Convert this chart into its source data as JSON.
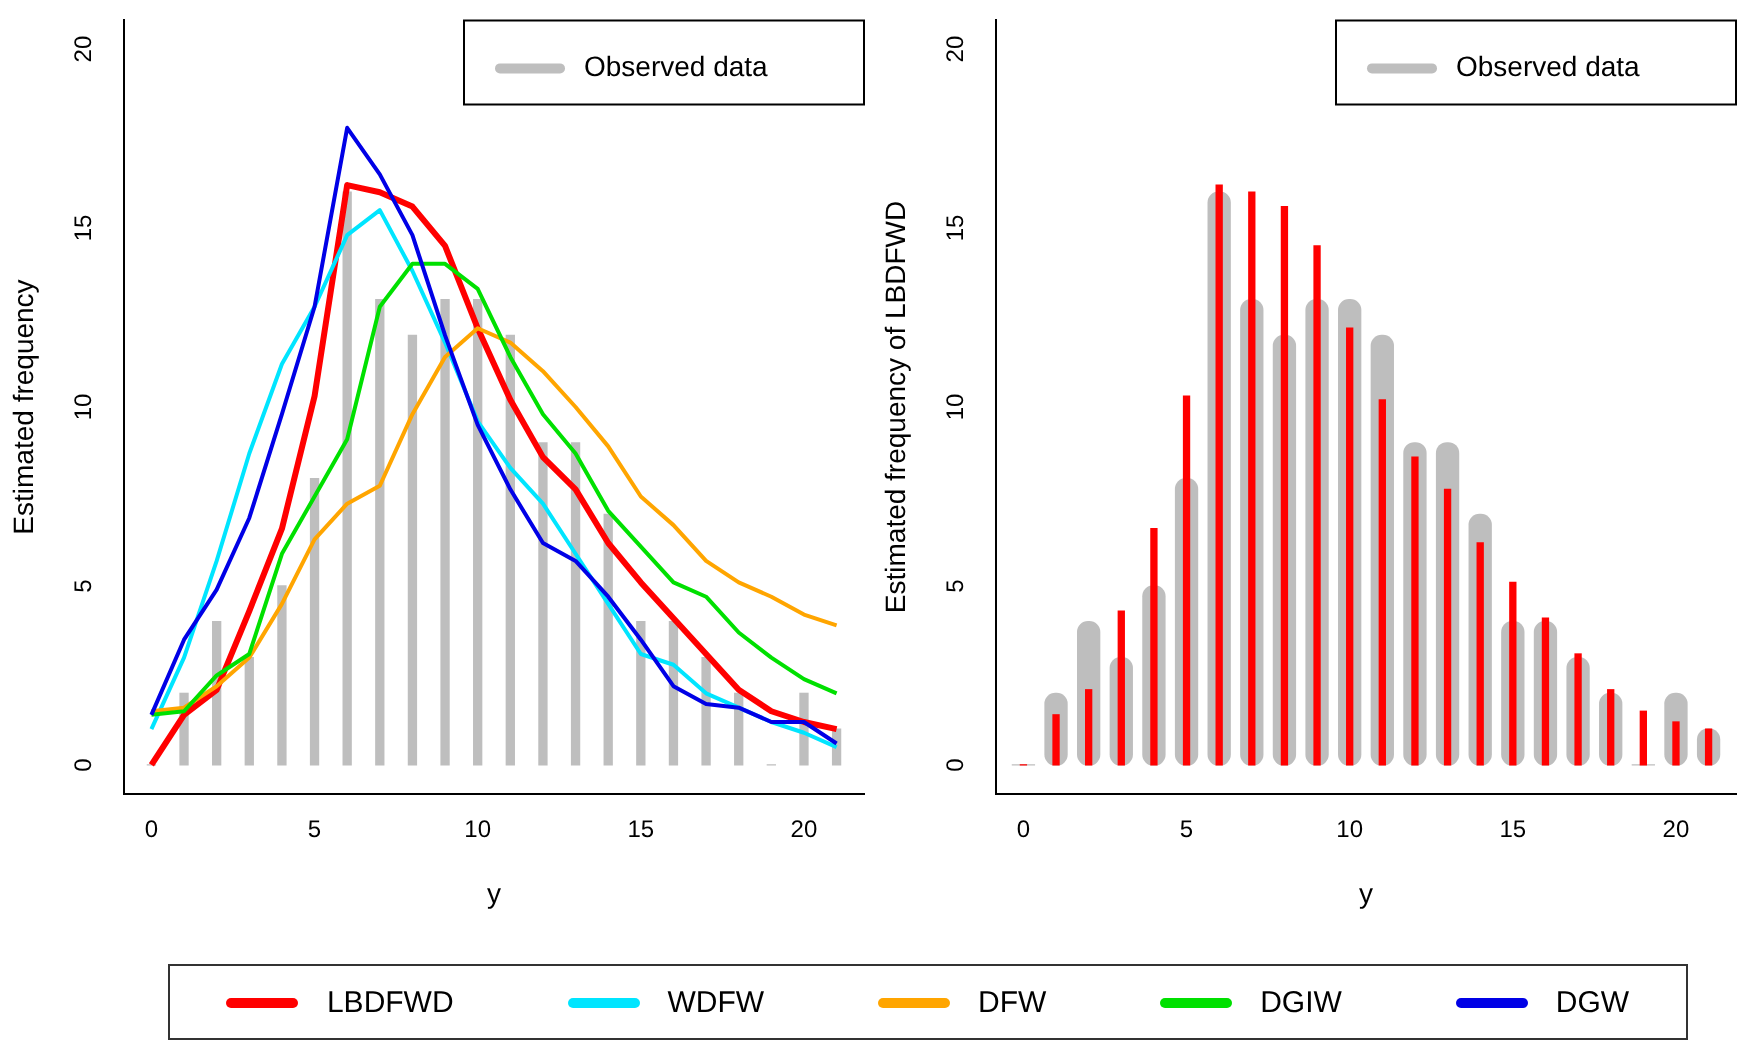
{
  "chart_data": [
    {
      "type": "line",
      "xlabel": "y",
      "ylabel": "Estimated frequency",
      "x": [
        0,
        1,
        2,
        3,
        4,
        5,
        6,
        7,
        8,
        9,
        10,
        11,
        12,
        13,
        14,
        15,
        16,
        17,
        18,
        19,
        20,
        21
      ],
      "xlim": [
        -0.84,
        21.84
      ],
      "ylim": [
        -0.8,
        20.8
      ],
      "xticks": [
        0,
        5,
        10,
        15,
        20
      ],
      "yticks": [
        0,
        5,
        10,
        15,
        20
      ],
      "grid": false,
      "legend": "bottom",
      "series": [
        {
          "name": "Observed data",
          "type": "bar",
          "color": "#bebebe",
          "values": [
            0,
            2,
            4,
            3,
            5,
            8,
            16,
            13,
            12,
            13,
            13,
            12,
            9,
            9,
            7,
            4,
            4,
            3,
            2,
            0,
            2,
            1
          ]
        },
        {
          "name": "LBDFWD",
          "color": "#ff0000",
          "values": [
            0,
            1.4,
            2.1,
            4.3,
            6.6,
            10.3,
            16.2,
            16.0,
            15.6,
            14.5,
            12.2,
            10.2,
            8.6,
            7.7,
            6.2,
            5.1,
            4.1,
            3.1,
            2.1,
            1.5,
            1.2,
            1.0
          ]
        },
        {
          "name": "WDFW",
          "color": "#00e5ff",
          "values": [
            1.0,
            3.0,
            5.7,
            8.7,
            11.2,
            12.8,
            14.8,
            15.5,
            13.8,
            11.8,
            9.6,
            8.3,
            7.3,
            5.9,
            4.5,
            3.1,
            2.8,
            2.0,
            1.6,
            1.2,
            0.9,
            0.5
          ]
        },
        {
          "name": "DFW",
          "color": "#ffa500",
          "values": [
            1.5,
            1.6,
            2.2,
            3.0,
            4.5,
            6.3,
            7.3,
            7.8,
            9.8,
            11.4,
            12.2,
            11.8,
            11.0,
            10.0,
            8.9,
            7.5,
            6.7,
            5.7,
            5.1,
            4.7,
            4.2,
            3.9
          ]
        },
        {
          "name": "DGIW",
          "color": "#00e000",
          "values": [
            1.4,
            1.5,
            2.5,
            3.1,
            5.9,
            7.5,
            9.1,
            12.8,
            14.0,
            14.0,
            13.3,
            11.4,
            9.8,
            8.7,
            7.1,
            6.1,
            5.1,
            4.7,
            3.7,
            3.0,
            2.4,
            2.0
          ]
        },
        {
          "name": "DGW",
          "color": "#0000e6",
          "values": [
            1.4,
            3.5,
            4.9,
            6.9,
            9.8,
            12.8,
            17.8,
            16.5,
            14.8,
            12.0,
            9.5,
            7.7,
            6.2,
            5.7,
            4.7,
            3.5,
            2.2,
            1.7,
            1.6,
            1.2,
            1.2,
            0.6
          ]
        }
      ]
    },
    {
      "type": "bar",
      "xlabel": "y",
      "ylabel": "Estimated frequency of LBDFWD",
      "x": [
        0,
        1,
        2,
        3,
        4,
        5,
        6,
        7,
        8,
        9,
        10,
        11,
        12,
        13,
        14,
        15,
        16,
        17,
        18,
        19,
        20,
        21
      ],
      "xlim": [
        -0.84,
        21.84
      ],
      "ylim": [
        -0.8,
        20.8
      ],
      "xticks": [
        0,
        5,
        10,
        15,
        20
      ],
      "yticks": [
        0,
        5,
        10,
        15,
        20
      ],
      "grid": false,
      "legend": "top right",
      "series": [
        {
          "name": "Observed data",
          "color": "#bebebe",
          "values": [
            0,
            2,
            4,
            3,
            5,
            8,
            16,
            13,
            12,
            13,
            13,
            12,
            9,
            9,
            7,
            4,
            4,
            3,
            2,
            0,
            2,
            1
          ]
        },
        {
          "color": "#ff0000",
          "values": [
            0,
            1.4,
            2.1,
            4.3,
            6.6,
            10.3,
            16.2,
            16.0,
            15.6,
            14.5,
            12.2,
            10.2,
            8.6,
            7.7,
            6.2,
            5.1,
            4.1,
            3.1,
            2.1,
            1.5,
            1.2,
            1.0
          ]
        }
      ]
    }
  ]
}
